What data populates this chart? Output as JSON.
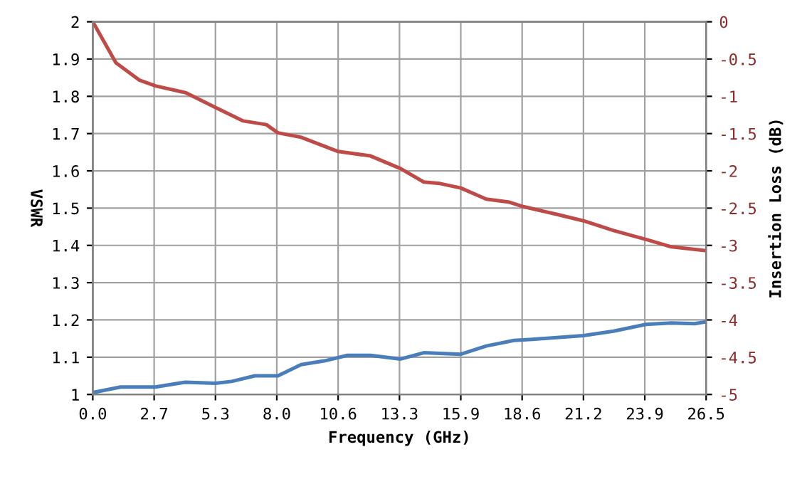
{
  "chart_data": {
    "type": "line",
    "xlabel": "Frequency (GHz)",
    "ylabel": "VSWR",
    "y2label": "Insertion Loss (dB)",
    "xlim": [
      0,
      26.5
    ],
    "xticks": [
      {
        "value": 0,
        "label": "0.0"
      },
      {
        "value": 2.65,
        "label": "2.7"
      },
      {
        "value": 5.3,
        "label": "5.3"
      },
      {
        "value": 7.95,
        "label": "8.0"
      },
      {
        "value": 10.6,
        "label": "10.6"
      },
      {
        "value": 13.25,
        "label": "13.3"
      },
      {
        "value": 15.9,
        "label": "15.9"
      },
      {
        "value": 18.55,
        "label": "18.6"
      },
      {
        "value": 21.2,
        "label": "21.2"
      },
      {
        "value": 23.85,
        "label": "23.9"
      },
      {
        "value": 26.5,
        "label": "26.5"
      }
    ],
    "ylim": [
      1,
      2
    ],
    "yticks": [
      1,
      1.1,
      1.2,
      1.3,
      1.4,
      1.5,
      1.6,
      1.7,
      1.8,
      1.9,
      2
    ],
    "y2lim": [
      -5,
      0
    ],
    "y2ticks": [
      -5,
      -4.5,
      -4,
      -3.5,
      -3,
      -2.5,
      -2,
      -1.5,
      -1,
      -0.5,
      0
    ],
    "grid": true,
    "marker": "none",
    "line_style": "solid",
    "series": [
      {
        "color": "#4a7ebb",
        "x": [
          0,
          1.2,
          2.7,
          4,
          5.3,
          6,
          7,
          8,
          9,
          10,
          11,
          12,
          13.3,
          14.3,
          15.9,
          17,
          18.2,
          19,
          21.2,
          22.5,
          23.9,
          25,
          26,
          26.5
        ],
        "values": [
          1.005,
          1.02,
          1.02,
          1.033,
          1.03,
          1.035,
          1.05,
          1.05,
          1.08,
          1.09,
          1.105,
          1.105,
          1.095,
          1.112,
          1.108,
          1.13,
          1.145,
          1.148,
          1.158,
          1.17,
          1.188,
          1.192,
          1.19,
          1.195
        ]
      },
      {
        "color": "#be4b48",
        "axis": "y2",
        "x": [
          0,
          1,
          2,
          2.7,
          4,
          5.3,
          6.5,
          7.5,
          8,
          9,
          10.6,
          12,
          13.3,
          14.3,
          15,
          15.9,
          17,
          18,
          18.6,
          20,
          21.2,
          22.5,
          23.9,
          25,
          26.5
        ],
        "values": [
          0,
          -0.55,
          -0.78,
          -0.86,
          -0.95,
          -1.15,
          -1.33,
          -1.38,
          -1.49,
          -1.55,
          -1.74,
          -1.8,
          -1.97,
          -2.15,
          -2.17,
          -2.23,
          -2.38,
          -2.42,
          -2.48,
          -2.58,
          -2.67,
          -2.8,
          -2.92,
          -3.02,
          -3.07
        ]
      }
    ]
  }
}
